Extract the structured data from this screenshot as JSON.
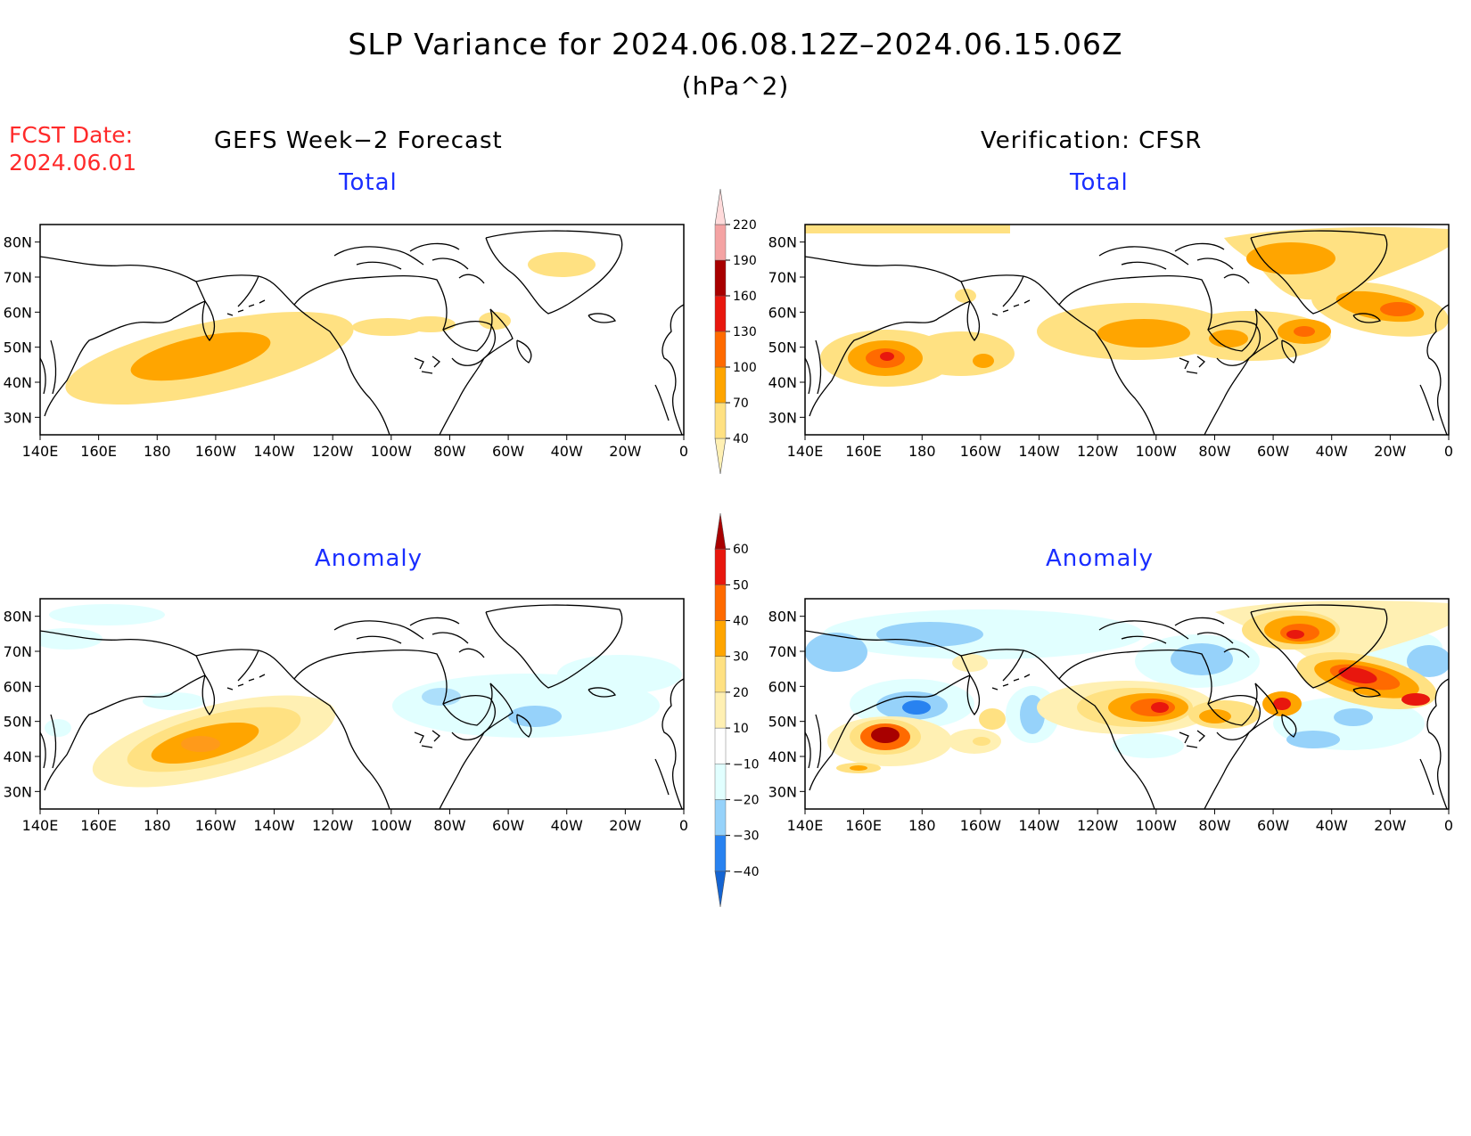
{
  "title": "SLP Variance for 2024.06.08.12Z–2024.06.15.06Z",
  "units": "(hPa^2)",
  "fcst_label": "FCST Date:",
  "fcst_date": "2024.06.01",
  "left_column_title": "GEFS Week−2 Forecast",
  "right_column_title": "Verification: CFSR",
  "panels": [
    {
      "label": "Total",
      "source": "GEFS"
    },
    {
      "label": "Total",
      "source": "CFSR"
    },
    {
      "label": "Anomaly",
      "source": "GEFS"
    },
    {
      "label": "Anomaly",
      "source": "CFSR"
    }
  ],
  "map_axes": {
    "lon_range": [
      140,
      360
    ],
    "lat_range": [
      25,
      85
    ],
    "lon_ticks": [
      "140E",
      "160E",
      "180",
      "160W",
      "140W",
      "120W",
      "100W",
      "80W",
      "60W",
      "40W",
      "20W",
      "0"
    ],
    "lat_ticks": [
      "30N",
      "40N",
      "50N",
      "60N",
      "70N",
      "80N"
    ]
  },
  "colorbars": {
    "total": {
      "levels": [
        "40",
        "70",
        "100",
        "130",
        "160",
        "190",
        "220"
      ],
      "colors": [
        "#fff0b3",
        "#ffe182",
        "#ffa500",
        "#ff6a00",
        "#e8170e",
        "#a80000",
        "#f4a3a3",
        "#ffdada"
      ]
    },
    "anomaly": {
      "levels": [
        "−40",
        "−30",
        "−20",
        "−10",
        "10",
        "20",
        "30",
        "40",
        "50",
        "60"
      ],
      "colors": [
        "#1464d2",
        "#2882f0",
        "#96d2fa",
        "#e1ffff",
        "#ffffff",
        "#fff0b3",
        "#ffe182",
        "#ffa500",
        "#ff6a00",
        "#e8170e",
        "#a80000"
      ]
    }
  },
  "colors": {
    "title_red": "#ff2a2a",
    "panel_title_blue": "#1a2eff"
  }
}
